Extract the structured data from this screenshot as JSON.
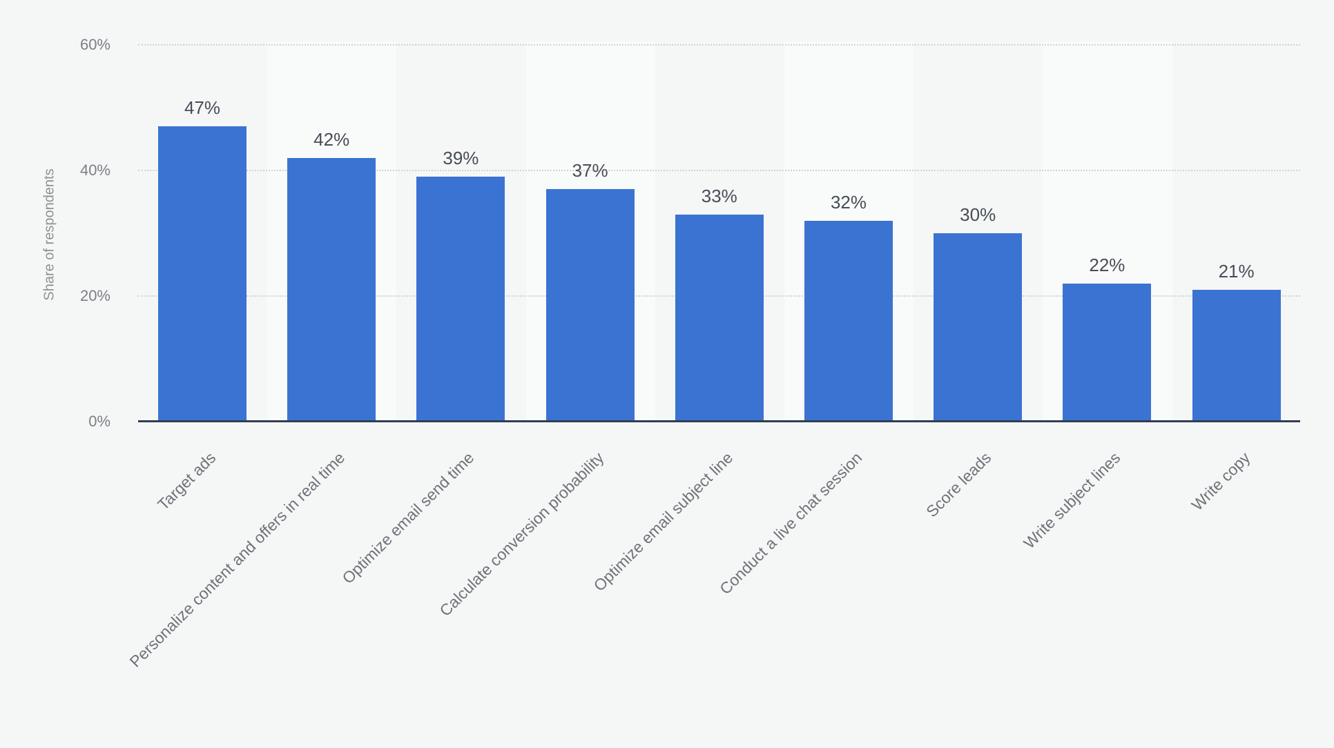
{
  "chart_data": {
    "type": "bar",
    "title": "",
    "xlabel": "",
    "ylabel": "Share of respondents",
    "ylim": [
      0,
      60
    ],
    "yticks": [
      "0%",
      "20%",
      "40%",
      "60%"
    ],
    "grid": true,
    "legend": null,
    "bar_color": "#3b73d2",
    "categories": [
      "Target ads",
      "Personalize content and offers in real time",
      "Optimize email send time",
      "Calculate conversion probability",
      "Optimize email subject line",
      "Conduct a live chat session",
      "Score leads",
      "Write subject lines",
      "Write copy"
    ],
    "values": [
      47,
      42,
      39,
      37,
      33,
      32,
      30,
      22,
      21
    ],
    "value_labels": [
      "47%",
      "42%",
      "39%",
      "37%",
      "33%",
      "32%",
      "30%",
      "22%",
      "21%"
    ]
  },
  "axis": {
    "y_title": "Share of respondents",
    "ticks": [
      {
        "label": "60%",
        "value": 60
      },
      {
        "label": "40%",
        "value": 40
      },
      {
        "label": "20%",
        "value": 20
      },
      {
        "label": "0%",
        "value": 0
      }
    ]
  }
}
